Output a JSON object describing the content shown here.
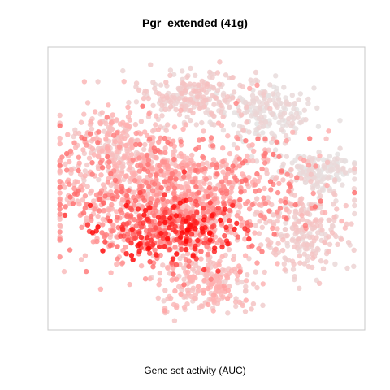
{
  "chart_data": {
    "type": "scatter",
    "title": "Pgr_extended (41g)",
    "xlabel": "Gene set activity (AUC)",
    "ylabel": "",
    "axes_visible": false,
    "grid": false,
    "legend": "none",
    "color_scale": {
      "low": "#e4e4e4",
      "mid": "#ffb0b0",
      "high": "#ff0000"
    },
    "x_range": [
      0,
      1
    ],
    "y_range": [
      0,
      1
    ],
    "regions": [
      {
        "name": "top-center",
        "cx": 0.45,
        "cy": 0.85,
        "sx": 0.09,
        "sy": 0.045,
        "n": 220,
        "activity": [
          0.12,
          0.35
        ]
      },
      {
        "name": "top-right",
        "cx": 0.68,
        "cy": 0.78,
        "sx": 0.08,
        "sy": 0.06,
        "n": 200,
        "activity": [
          0.0,
          0.18
        ]
      },
      {
        "name": "upper-left",
        "cx": 0.2,
        "cy": 0.65,
        "sx": 0.09,
        "sy": 0.08,
        "n": 260,
        "activity": [
          0.2,
          0.5
        ]
      },
      {
        "name": "main-body",
        "cx": 0.4,
        "cy": 0.48,
        "sx": 0.2,
        "sy": 0.12,
        "n": 1100,
        "activity": [
          0.3,
          0.7
        ]
      },
      {
        "name": "core",
        "cx": 0.38,
        "cy": 0.35,
        "sx": 0.12,
        "sy": 0.06,
        "n": 320,
        "activity": [
          0.55,
          1.0
        ]
      },
      {
        "name": "bottom-lobe",
        "cx": 0.5,
        "cy": 0.15,
        "sx": 0.08,
        "sy": 0.06,
        "n": 220,
        "activity": [
          0.2,
          0.55
        ]
      },
      {
        "name": "right-arm",
        "cx": 0.83,
        "cy": 0.35,
        "sx": 0.07,
        "sy": 0.08,
        "n": 230,
        "activity": [
          0.1,
          0.35
        ]
      },
      {
        "name": "far-right-cluster",
        "cx": 0.88,
        "cy": 0.57,
        "sx": 0.06,
        "sy": 0.035,
        "n": 150,
        "activity": [
          0.0,
          0.15
        ]
      }
    ]
  }
}
